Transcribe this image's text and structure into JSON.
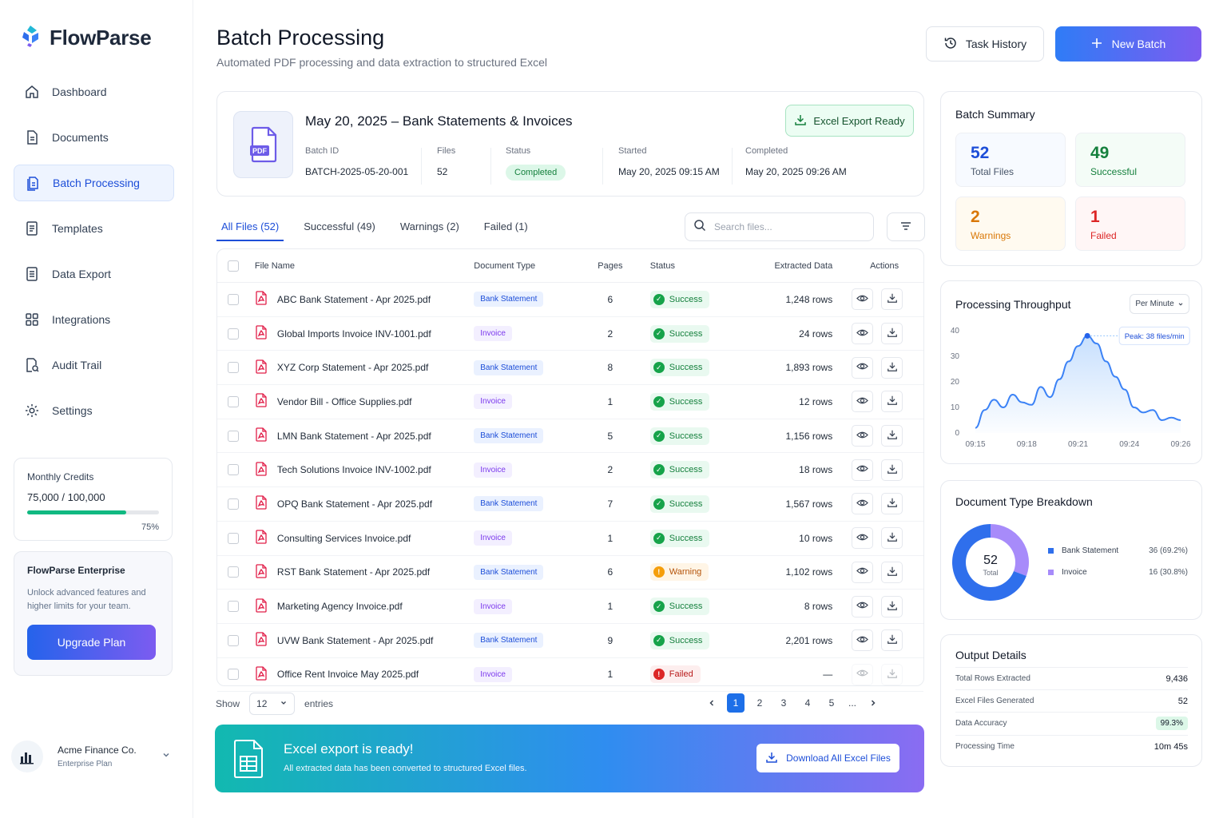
{
  "brand": {
    "name": "FlowParse"
  },
  "nav": [
    {
      "label": "Dashboard",
      "icon": "home-icon"
    },
    {
      "label": "Documents",
      "icon": "document-icon"
    },
    {
      "label": "Batch Processing",
      "icon": "batch-icon",
      "active": true
    },
    {
      "label": "Templates",
      "icon": "template-icon"
    },
    {
      "label": "Data Export",
      "icon": "export-icon"
    },
    {
      "label": "Integrations",
      "icon": "grid-icon"
    },
    {
      "label": "Audit Trail",
      "icon": "audit-icon"
    },
    {
      "label": "Settings",
      "icon": "gear-icon"
    }
  ],
  "credits": {
    "label": "Monthly Credits",
    "value": "75,000 / 100,000",
    "percent": "75%",
    "fraction": 0.75
  },
  "enterprise": {
    "title": "FlowParse Enterprise",
    "desc": "Unlock advanced features and higher limits for your team.",
    "button": "Upgrade Plan"
  },
  "account": {
    "name": "Acme Finance Co.",
    "plan": "Enterprise Plan"
  },
  "header": {
    "title": "Batch Processing",
    "subtitle": "Automated PDF processing and data extraction to structured Excel",
    "history_label": "Task History",
    "new_label": "New Batch"
  },
  "batch": {
    "title": "May 20, 2025 – Bank Statements & Invoices",
    "export_label": "Excel Export Ready",
    "id_label": "Batch ID",
    "id": "BATCH-2025-05-20-001",
    "files_label": "Files",
    "files": "52",
    "status_label": "Status",
    "status": "Completed",
    "started_label": "Started",
    "started": "May 20, 2025 09:15 AM",
    "completed_label": "Completed",
    "completed": "May 20, 2025 09:26 AM"
  },
  "tabs": [
    "All Files (52)",
    "Successful (49)",
    "Warnings (2)",
    "Failed (1)"
  ],
  "search": {
    "placeholder": "Search files..."
  },
  "table": {
    "headers": [
      "File Name",
      "Document Type",
      "Pages",
      "Status",
      "Extracted Data",
      "Actions"
    ],
    "rows": [
      {
        "name": "ABC Bank Statement - Apr 2025.pdf",
        "type": "Bank Statement",
        "pages": "6",
        "status": "Success",
        "data": "1,248 rows"
      },
      {
        "name": "Global Imports Invoice INV-1001.pdf",
        "type": "Invoice",
        "pages": "2",
        "status": "Success",
        "data": "24 rows"
      },
      {
        "name": "XYZ Corp Statement - Apr 2025.pdf",
        "type": "Bank Statement",
        "pages": "8",
        "status": "Success",
        "data": "1,893 rows"
      },
      {
        "name": "Vendor Bill - Office Supplies.pdf",
        "type": "Invoice",
        "pages": "1",
        "status": "Success",
        "data": "12 rows"
      },
      {
        "name": "LMN Bank Statement - Apr 2025.pdf",
        "type": "Bank Statement",
        "pages": "5",
        "status": "Success",
        "data": "1,156 rows"
      },
      {
        "name": "Tech Solutions Invoice INV-1002.pdf",
        "type": "Invoice",
        "pages": "2",
        "status": "Success",
        "data": "18 rows"
      },
      {
        "name": "OPQ Bank Statement - Apr 2025.pdf",
        "type": "Bank Statement",
        "pages": "7",
        "status": "Success",
        "data": "1,567 rows"
      },
      {
        "name": "Consulting Services Invoice.pdf",
        "type": "Invoice",
        "pages": "1",
        "status": "Success",
        "data": "10 rows"
      },
      {
        "name": "RST Bank Statement - Apr 2025.pdf",
        "type": "Bank Statement",
        "pages": "6",
        "status": "Warning",
        "data": "1,102 rows"
      },
      {
        "name": "Marketing Agency Invoice.pdf",
        "type": "Invoice",
        "pages": "1",
        "status": "Success",
        "data": "8 rows"
      },
      {
        "name": "UVW Bank Statement - Apr 2025.pdf",
        "type": "Bank Statement",
        "pages": "9",
        "status": "Success",
        "data": "2,201 rows"
      },
      {
        "name": "Office Rent Invoice May 2025.pdf",
        "type": "Invoice",
        "pages": "1",
        "status": "Failed",
        "data": "—"
      }
    ]
  },
  "pagination": {
    "show_label": "Show",
    "per_page": "12",
    "entries_label": "entries",
    "pages": [
      "1",
      "2",
      "3",
      "4",
      "5",
      "..."
    ],
    "current": "1"
  },
  "banner": {
    "title": "Excel export is ready!",
    "subtitle": "All extracted data has been converted to structured Excel files.",
    "button": "Download All Excel Files"
  },
  "summary": {
    "title": "Batch Summary",
    "total": "52",
    "total_label": "Total Files",
    "success": "49",
    "success_label": "Successful",
    "warnings": "2",
    "warnings_label": "Warnings",
    "failed": "1",
    "failed_label": "Failed"
  },
  "throughput": {
    "title": "Processing Throughput",
    "selector": "Per Minute",
    "peak_label": "Peak: 38 files/min"
  },
  "breakdown": {
    "title": "Document Type Breakdown",
    "center_value": "52",
    "center_label": "Total",
    "items": [
      {
        "label": "Bank Statement",
        "value": "36 (69.2%)",
        "color": "#2f6fec"
      },
      {
        "label": "Invoice",
        "value": "16 (30.8%)",
        "color": "#a78bfa"
      }
    ]
  },
  "output": {
    "title": "Output Details",
    "rows": [
      {
        "label": "Total Rows Extracted",
        "value": "9,436"
      },
      {
        "label": "Excel Files Generated",
        "value": "52"
      },
      {
        "label": "Data Accuracy",
        "value": "99.3%"
      },
      {
        "label": "Processing Time",
        "value": "10m 45s"
      }
    ]
  },
  "chart_data": [
    {
      "type": "area",
      "title": "Processing Throughput",
      "x_ticks": [
        "09:15",
        "09:18",
        "09:21",
        "09:24",
        "09:26"
      ],
      "y_ticks": [
        "0",
        "10",
        "20",
        "30",
        "40"
      ],
      "ylim": [
        0,
        40
      ],
      "xlim": [
        0,
        11
      ],
      "x": [
        0,
        0.5,
        1,
        1.5,
        2,
        2.5,
        3,
        3.5,
        4,
        4.5,
        5,
        5.5,
        6,
        6.5,
        7,
        7.5,
        8,
        8.5,
        9,
        9.5,
        10,
        10.5,
        11
      ],
      "values": [
        2,
        9,
        13,
        10,
        15,
        12,
        11,
        18,
        14,
        21,
        28,
        34,
        38,
        35,
        28,
        22,
        17,
        10,
        8,
        9,
        5,
        6,
        5
      ],
      "peak": {
        "x": 6,
        "value": 38,
        "label": "Peak: 38 files/min"
      },
      "grid": false,
      "color": "#3b82f6"
    },
    {
      "type": "pie",
      "title": "Document Type Breakdown",
      "categories": [
        "Bank Statement",
        "Invoice"
      ],
      "values": [
        36,
        16
      ],
      "colors": [
        "#2f6fec",
        "#a78bfa"
      ]
    }
  ]
}
